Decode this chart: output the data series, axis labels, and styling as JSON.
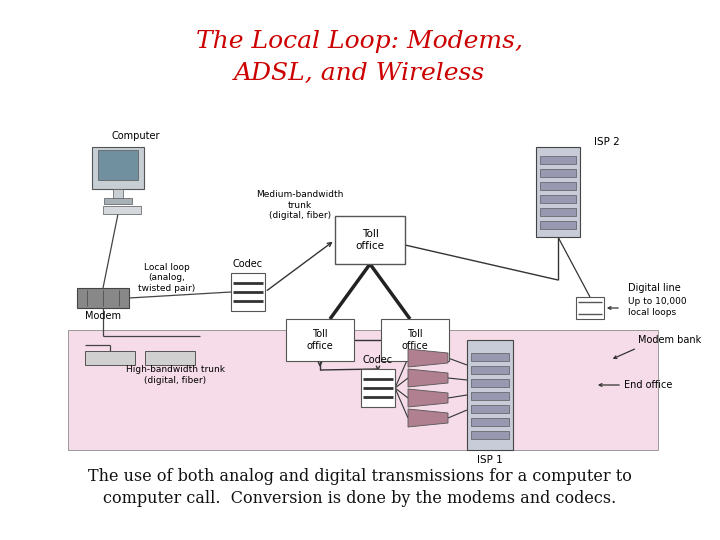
{
  "title_line1": "The Local Loop: Modems,",
  "title_line2": "ADSL, and Wireless",
  "title_color": "#cc0000",
  "title_fontsize": 18,
  "caption_line1": "The use of both analog and digital transmissions for a computer to",
  "caption_line2": "computer call.  Conversion is done by the modems and codecs.",
  "caption_fontsize": 11.5,
  "bg_color": "#ffffff"
}
